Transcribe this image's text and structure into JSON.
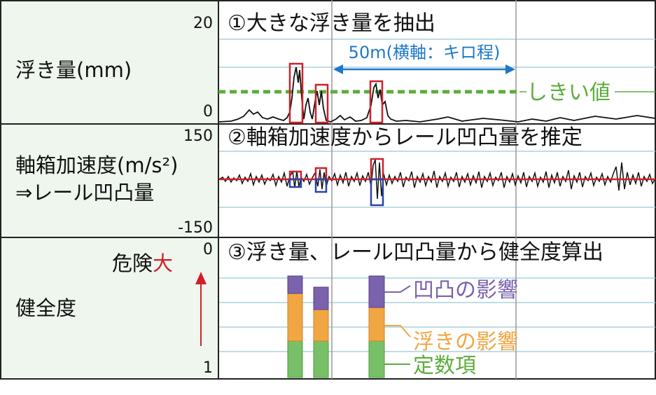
{
  "panel1": {
    "label": "浮き量(mm)",
    "title": "①大きな浮き量を抽出",
    "y_max_label": "20",
    "y_min_label": "0",
    "span_label": "50m(横軸：キロ程)",
    "threshold_label": "しきい値"
  },
  "panel2": {
    "label_line1": "軸箱加速度(m/s²)",
    "label_line2": "⇒レール凹凸量",
    "title": "②軸箱加速度からレール凹凸量を推定",
    "y_max_label": "150",
    "y_min_label": "-150"
  },
  "panel3": {
    "label": "健全度",
    "title": "③浮き量、レール凹凸量から健全度算出",
    "danger_label": "危険",
    "danger_emphasis": "大",
    "y_top_label": "0",
    "y_bottom_label": "1",
    "legend": {
      "unevenness": "凹凸の影響",
      "lift": "浮きの影響",
      "constant": "定数項"
    }
  },
  "colors": {
    "label_bg": "#eef6ee",
    "grid": "#a9d2de",
    "highlight_red": "#d0202a",
    "highlight_blue": "#2a43a8",
    "threshold_green": "#5cad3d",
    "unevenness_purple": "#7a62ad",
    "lift_orange": "#f0a642",
    "constant_green": "#78c067",
    "span_blue": "#1e78c8"
  }
}
